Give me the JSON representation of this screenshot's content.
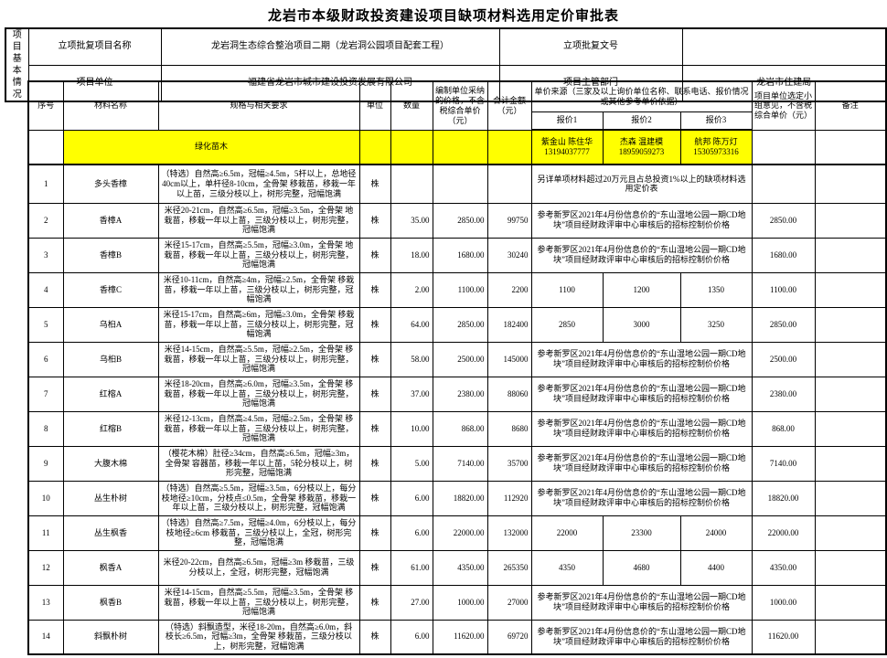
{
  "title": "龙岩市本级财政投资建设项目缺项材料选用定价审批表",
  "colors": {
    "highlight": "#FFFF00"
  },
  "info": {
    "group_label": "项目基本情况",
    "row1": {
      "label1": "立项批复项目名称",
      "value1": "龙岩洞生态综合整治项目二期（龙岩洞公园项目配套工程）",
      "label2": "立项批复文号",
      "value2": ""
    },
    "row2": {
      "label1": "项目单位",
      "value1": "福建省龙岩市城市建设投资发展有限公司",
      "label2": "项目主管部门",
      "value2": "龙岩市住建局"
    }
  },
  "table": {
    "headers": {
      "seq": "序号",
      "name": "材料名称",
      "spec": "规格与相关要求",
      "unit": "单位",
      "qty": "数量",
      "price": "编制单位采纳的价格，不含税综合单价（元）",
      "total": "合计金额（元）",
      "source_group": "单价来源（三家及以上询价单位名称、联系电话、报价情况或其他参考单价依据）",
      "quote1": "报价1",
      "quote2": "报价2",
      "quote3": "报价3",
      "opinion": "项目单位选定小组意见，不含税综合单价（元）",
      "remark": "备注"
    },
    "category": {
      "name": "绿化苗木",
      "quotes": [
        {
          "vendor": "紫金山 陈住华",
          "phone": "13194037777"
        },
        {
          "vendor": "杰森 温建模",
          "phone": "18959059273"
        },
        {
          "vendor": "航邦 陈万灯",
          "phone": "15305973316"
        }
      ]
    },
    "rows": [
      {
        "seq": "1",
        "name": "多头香樟",
        "spec": "（特选）自然高≥6.5m，冠幅≥4.5m，5杆以上，总地径40cm以上，单杆径8-10cm，全骨架 移栽苗，移栽一年以上苗，三级分枝以上，树形完整，冠幅饱满",
        "unit": "株",
        "qty": "",
        "price": "",
        "total": "",
        "note": "另详单项材料超过20万元且占总投资1%以上的缺项材料选用定价表",
        "opinion": "",
        "remark": ""
      },
      {
        "seq": "2",
        "name": "香樟A",
        "spec": "米径20-21cm，自然高≥6.5m，冠幅≥3.5m，全骨架 地栽苗，移栽一年以上苗，三级分枝以上，树形完整，冠幅饱满",
        "unit": "株",
        "qty": "35.00",
        "price": "2850.00",
        "total": "99750",
        "note": "参考新罗区2021年4月份信息价的“东山湿地公园一期CD地块”项目经财政评审中心审核后的招标控制价价格",
        "opinion": "2850.00",
        "remark": ""
      },
      {
        "seq": "3",
        "name": "香樟B",
        "spec": "米径15-17cm，自然高≥5.5m，冠幅≥3.0m，全骨架 地栽苗，移栽一年以上苗，三级分枝以上，树形完整，冠幅饱满",
        "unit": "株",
        "qty": "18.00",
        "price": "1680.00",
        "total": "30240",
        "note": "参考新罗区2021年4月份信息价的“东山湿地公园一期CD地块”项目经财政评审中心审核后的招标控制价价格",
        "opinion": "1680.00",
        "remark": ""
      },
      {
        "seq": "4",
        "name": "香樟C",
        "spec": "米径10-11cm，自然高≥4m，冠幅≥2.5m，全骨架 移栽苗，移栽一年以上苗，三级分枝以上，树形完整，冠幅饱满",
        "unit": "株",
        "qty": "2.00",
        "price": "1100.00",
        "total": "2200",
        "q1": "1100",
        "q2": "1200",
        "q3": "1350",
        "opinion": "1100.00",
        "remark": ""
      },
      {
        "seq": "5",
        "name": "乌桕A",
        "spec": "米径15-17cm，自然高≥6m，冠幅≥3.0m，全骨架 移栽苗，移栽一年以上苗，三级分枝以上，树形完整，冠幅饱满",
        "unit": "株",
        "qty": "64.00",
        "price": "2850.00",
        "total": "182400",
        "q1": "2850",
        "q2": "3000",
        "q3": "3250",
        "opinion": "2850.00",
        "remark": ""
      },
      {
        "seq": "6",
        "name": "乌桕B",
        "spec": "米径14-15cm，自然高≥5.5m，冠幅≥2.5m，全骨架 移栽苗，移栽一年以上苗，三级分枝以上，树形完整，冠幅饱满",
        "unit": "株",
        "qty": "58.00",
        "price": "2500.00",
        "total": "145000",
        "note": "参考新罗区2021年4月份信息价的“东山湿地公园一期CD地块”项目经财政评审中心审核后的招标控制价价格",
        "opinion": "2500.00",
        "remark": ""
      },
      {
        "seq": "7",
        "name": "红榕A",
        "spec": "米径18-20cm，自然高≥6.0m，冠幅≥3.5m，全骨架 移栽苗，移栽一年以上苗，三级分枝以上，树形完整，冠幅饱满",
        "unit": "株",
        "qty": "37.00",
        "price": "2380.00",
        "total": "88060",
        "note": "参考新罗区2021年4月份信息价的“东山湿地公园一期CD地块”项目经财政评审中心审核后的招标控制价价格",
        "opinion": "2380.00",
        "remark": ""
      },
      {
        "seq": "8",
        "name": "红榕B",
        "spec": "米径12-13cm，自然高≥4.5m，冠幅≥2.5m，全骨架 移栽苗，移栽一年以上苗，三级分枝以上，树形完整，冠幅饱满",
        "unit": "株",
        "qty": "10.00",
        "price": "868.00",
        "total": "8680",
        "note": "参考新罗区2021年4月份信息价的“东山湿地公园一期CD地块”项目经财政评审中心审核后的招标控制价价格",
        "opinion": "868.00",
        "remark": ""
      },
      {
        "seq": "9",
        "name": "大腹木棉",
        "spec": "（樱花木棉）肚径≥34cm，自然高≥6.5m，冠幅≥3m，全骨架 容器苗，移栽一年以上苗，5轮分枝以上，树形完整，冠幅饱满",
        "unit": "株",
        "qty": "5.00",
        "price": "7140.00",
        "total": "35700",
        "note": "参考新罗区2021年4月份信息价的“东山湿地公园一期CD地块”项目经财政评审中心审核后的招标控制价价格",
        "opinion": "7140.00",
        "remark": ""
      },
      {
        "seq": "10",
        "name": "丛生朴树",
        "spec": "（特选）自然高≥5.5m，冠幅≥3.5m，6分枝以上，每分枝地径≥10cm，分枝点≤0.5m，全骨架 移栽苗，移栽一年以上苗，三级分枝以上，树形完整，冠幅饱满",
        "unit": "株",
        "qty": "6.00",
        "price": "18820.00",
        "total": "112920",
        "note": "参考新罗区2021年4月份信息价的“东山湿地公园一期CD地块”项目经财政评审中心审核后的招标控制价价格",
        "opinion": "18820.00",
        "remark": ""
      },
      {
        "seq": "11",
        "name": "丛生枫香",
        "spec": "（特选）自然高≥7.5m，冠幅≥4.0m，6分枝以上，每分枝地径≥6cm 移栽苗，三级分枝以上，全冠，树形完整，冠幅饱满",
        "unit": "株",
        "qty": "6.00",
        "price": "22000.00",
        "total": "132000",
        "q1": "22000",
        "q2": "23300",
        "q3": "24000",
        "opinion": "22000.00",
        "remark": ""
      },
      {
        "seq": "12",
        "name": "枫香A",
        "spec": "米径20-22cm，自然高≥6.5m，冠幅≥3m 移栽苗，三级分枝以上，全冠，树形完整，冠幅饱满",
        "unit": "株",
        "qty": "61.00",
        "price": "4350.00",
        "total": "265350",
        "q1": "4350",
        "q2": "4680",
        "q3": "4400",
        "opinion": "4350.00",
        "remark": ""
      },
      {
        "seq": "13",
        "name": "枫香B",
        "spec": "米径14-15cm，自然高≥5.5m，冠幅≥3.5m，全骨架 移栽苗，移栽一年以上苗，三级分枝以上，树形完整，冠幅饱满",
        "unit": "株",
        "qty": "27.00",
        "price": "1000.00",
        "total": "27000",
        "note": "参考新罗区2021年4月份信息价的“东山湿地公园一期CD地块”项目经财政评审中心审核后的招标控制价价格",
        "opinion": "1000.00",
        "remark": ""
      },
      {
        "seq": "14",
        "name": "斜飘朴树",
        "spec": "（特选）斜飘造型，米径18-20m，自然高≥6.0m，斜枝长≥6.5m，冠幅≥3m，全骨架 移栽苗，三级分枝以上，树形完整，冠幅饱满",
        "unit": "株",
        "qty": "6.00",
        "price": "11620.00",
        "total": "69720",
        "note": "参考新罗区2021年4月份信息价的“东山湿地公园一期CD地块”项目经财政评审中心审核后的招标控制价价格",
        "opinion": "11620.00",
        "remark": ""
      }
    ]
  }
}
